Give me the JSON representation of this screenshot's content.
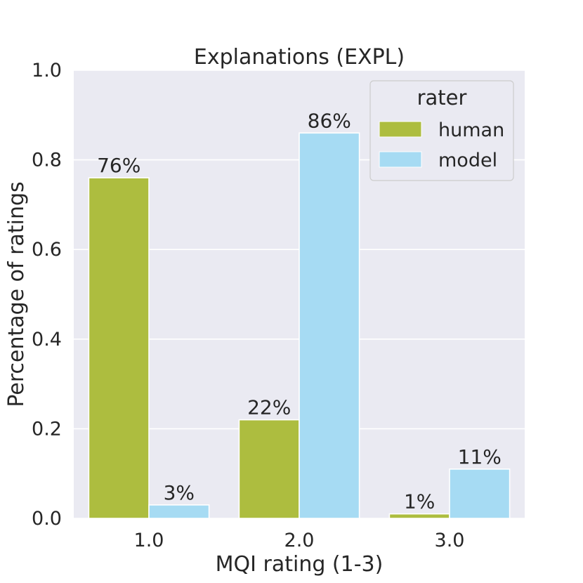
{
  "chart_data": {
    "type": "bar",
    "title": "Explanations (EXPL)",
    "xlabel": "MQI rating (1-3)",
    "ylabel": "Percentage of ratings",
    "categories": [
      "1.0",
      "2.0",
      "3.0"
    ],
    "ylim": [
      0,
      1.0
    ],
    "yticks": [
      "0.0",
      "0.2",
      "0.4",
      "0.6",
      "0.8",
      "1.0"
    ],
    "grid": true,
    "legend": {
      "title": "rater",
      "position": "top-right"
    },
    "series": [
      {
        "name": "human",
        "color": "#adbd3f",
        "values": [
          0.76,
          0.22,
          0.01
        ],
        "labels": [
          "76%",
          "22%",
          "1%"
        ]
      },
      {
        "name": "model",
        "color": "#a6dbf3",
        "values": [
          0.03,
          0.86,
          0.11
        ],
        "labels": [
          "3%",
          "86%",
          "11%"
        ]
      }
    ]
  }
}
